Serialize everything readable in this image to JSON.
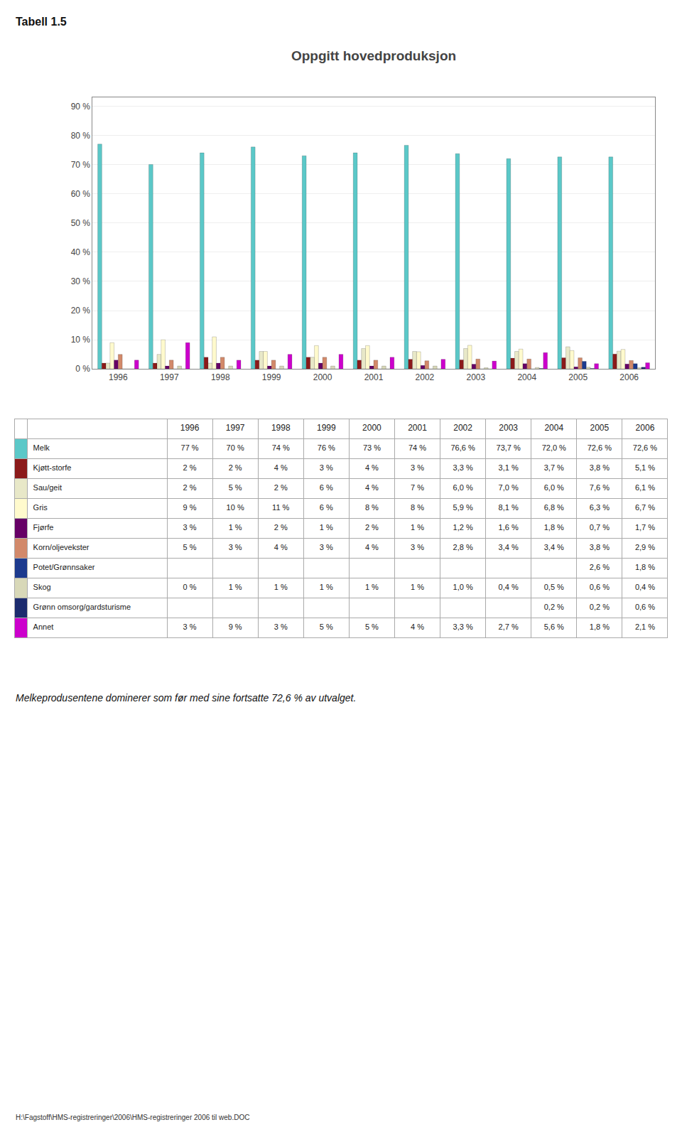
{
  "chart_data": {
    "type": "bar",
    "title": "Oppgitt hovedproduksjon",
    "annotations": [
      "Tabell 1.5",
      "Melkeprodusentene dominerer som før med sine fortsatte 72,6 % av utvalget.",
      "H:\\Fagstoff\\HMS-registreringer\\2006\\HMS-registreringer 2006 til web.DOC"
    ],
    "categories": [
      1996,
      1997,
      1998,
      1999,
      2000,
      2001,
      2002,
      2003,
      2004,
      2005,
      2006
    ],
    "series": [
      {
        "name": "Melk",
        "color": "#5BC8C8",
        "values": [
          77,
          70,
          74,
          76,
          73,
          74,
          76.6,
          73.7,
          72.0,
          72.6,
          72.6
        ],
        "value_labels": [
          "77 %",
          "70 %",
          "74 %",
          "76 %",
          "73 %",
          "74 %",
          "76,6 %",
          "73,7 %",
          "72,0 %",
          "72,6 %",
          "72,6 %"
        ]
      },
      {
        "name": "Kjøtt-storfe",
        "color": "#8B1A1A",
        "values": [
          2,
          2,
          4,
          3,
          4,
          3,
          3.3,
          3.1,
          3.7,
          3.8,
          5.1
        ],
        "value_labels": [
          "2 %",
          "2 %",
          "4 %",
          "3 %",
          "4 %",
          "3 %",
          "3,3 %",
          "3,1 %",
          "3,7 %",
          "3,8 %",
          "5,1 %"
        ]
      },
      {
        "name": "Sau/geit",
        "color": "#E8E8C8",
        "values": [
          2,
          5,
          2,
          6,
          4,
          7,
          6.0,
          7.0,
          6.0,
          7.6,
          6.1
        ],
        "value_labels": [
          "2 %",
          "5 %",
          "2 %",
          "6 %",
          "4 %",
          "7 %",
          "6,0 %",
          "7,0 %",
          "6,0 %",
          "7,6 %",
          "6,1 %"
        ]
      },
      {
        "name": "Gris",
        "color": "#FFFACD",
        "values": [
          9,
          10,
          11,
          6,
          8,
          8,
          5.9,
          8.1,
          6.8,
          6.3,
          6.7
        ],
        "value_labels": [
          "9 %",
          "10 %",
          "11 %",
          "6 %",
          "8 %",
          "8 %",
          "5,9 %",
          "8,1 %",
          "6,8 %",
          "6,3 %",
          "6,7 %"
        ]
      },
      {
        "name": "Fjørfe",
        "color": "#660066",
        "values": [
          3,
          1,
          2,
          1,
          2,
          1,
          1.2,
          1.6,
          1.8,
          0.7,
          1.7
        ],
        "value_labels": [
          "3 %",
          "1 %",
          "2 %",
          "1 %",
          "2 %",
          "1 %",
          "1,2 %",
          "1,6 %",
          "1,8 %",
          "0,7 %",
          "1,7 %"
        ]
      },
      {
        "name": "Korn/oljevekster",
        "color": "#D2896A",
        "values": [
          5,
          3,
          4,
          3,
          4,
          3,
          2.8,
          3.4,
          3.4,
          3.8,
          2.9
        ],
        "value_labels": [
          "5 %",
          "3 %",
          "4 %",
          "3 %",
          "4 %",
          "3 %",
          "2,8 %",
          "3,4 %",
          "3,4 %",
          "3,8 %",
          "2,9 %"
        ]
      },
      {
        "name": "Potet/Grønnsaker",
        "color": "#1C3A8E",
        "values": [
          0,
          0,
          0,
          0,
          0,
          0,
          0.0,
          0.0,
          0.0,
          2.6,
          1.8
        ],
        "value_labels": [
          null,
          null,
          null,
          null,
          null,
          null,
          null,
          null,
          null,
          "2,6 %",
          "1,8 %"
        ]
      },
      {
        "name": "Skog",
        "color": "#D8D8B8",
        "values": [
          0,
          1,
          1,
          1,
          1,
          1,
          1.0,
          0.4,
          0.5,
          0.6,
          0.4
        ],
        "value_labels": [
          "0 %",
          "1 %",
          "1 %",
          "1 %",
          "1 %",
          "1 %",
          "1,0 %",
          "0,4 %",
          "0,5 %",
          "0,6 %",
          "0,4 %"
        ]
      },
      {
        "name": "Grønn omsorg/gardsturisme",
        "color": "#1C2B6E",
        "values": [
          0,
          0,
          0,
          0,
          0,
          0,
          0.0,
          0.0,
          0.2,
          0.2,
          0.6
        ],
        "value_labels": [
          null,
          null,
          null,
          null,
          null,
          null,
          null,
          null,
          "0,2 %",
          "0,2 %",
          "0,6 %"
        ]
      },
      {
        "name": "Annet",
        "color": "#CC00CC",
        "values": [
          3,
          9,
          3,
          5,
          5,
          4,
          3.3,
          2.7,
          5.6,
          1.8,
          2.1
        ],
        "value_labels": [
          "3 %",
          "9 %",
          "3 %",
          "5 %",
          "5 %",
          "4 %",
          "3,3 %",
          "2,7 %",
          "5,6 %",
          "1,8 %",
          "2,1 %"
        ]
      }
    ],
    "ylim": [
      0,
      93
    ],
    "yticks": [
      {
        "value": 0,
        "label": "0 %"
      },
      {
        "value": 10,
        "label": "10 %"
      },
      {
        "value": 20,
        "label": "20 %"
      },
      {
        "value": 30,
        "label": "30 %"
      },
      {
        "value": 40,
        "label": "40 %"
      },
      {
        "value": 50,
        "label": "50 %"
      },
      {
        "value": 60,
        "label": "60 %"
      },
      {
        "value": 70,
        "label": "70 %"
      },
      {
        "value": 80,
        "label": "80 %"
      },
      {
        "value": 90,
        "label": "90 %"
      }
    ],
    "grid": true
  }
}
